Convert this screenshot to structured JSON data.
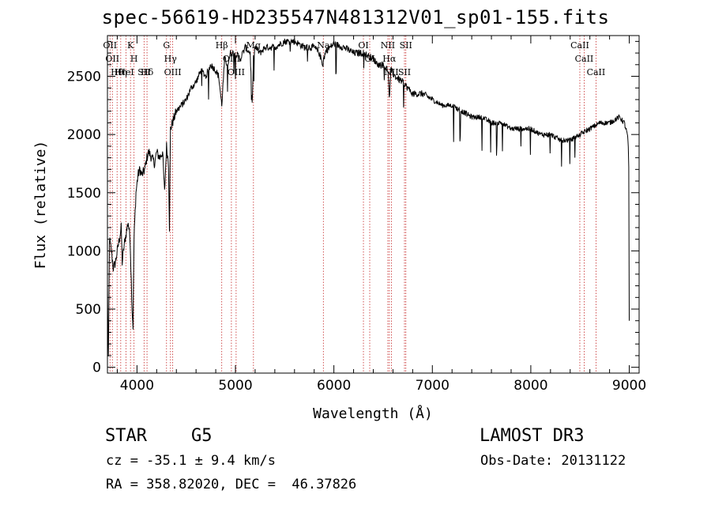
{
  "chart_data": {
    "type": "line",
    "title": "spec-56619-HD235547N481312V01_sp01-155.fits",
    "xlabel": "Wavelength (Å)",
    "ylabel": "Flux (relative)",
    "xlim": [
      3700,
      9100
    ],
    "ylim": [
      -50,
      2850
    ],
    "xticks": [
      4000,
      5000,
      6000,
      7000,
      8000,
      9000
    ],
    "yticks": [
      0,
      500,
      1000,
      1500,
      2000,
      2500
    ],
    "grid": false,
    "series": [
      {
        "color": "#000000",
        "x": [
          3700,
          3710,
          3720,
          3740,
          3760,
          3780,
          3800,
          3820,
          3840,
          3850,
          3870,
          3890,
          3910,
          3930,
          3950,
          3960,
          3970,
          3990,
          4010,
          4030,
          4050,
          4080,
          4100,
          4120,
          4150,
          4180,
          4200,
          4230,
          4260,
          4280,
          4300,
          4320,
          4330,
          4340,
          4360,
          4380,
          4400,
          4450,
          4500,
          4550,
          4600,
          4650,
          4700,
          4750,
          4800,
          4830,
          4861,
          4890,
          4920,
          4950,
          5000,
          5050,
          5100,
          5150,
          5170,
          5183,
          5200,
          5250,
          5300,
          5400,
          5500,
          5600,
          5700,
          5800,
          5850,
          5890,
          5896,
          5920,
          6000,
          6100,
          6200,
          6300,
          6400,
          6450,
          6500,
          6550,
          6563,
          6580,
          6620,
          6700,
          6800,
          6900,
          7000,
          7100,
          7200,
          7300,
          7400,
          7500,
          7600,
          7700,
          7800,
          7900,
          8000,
          8100,
          8200,
          8300,
          8400,
          8500,
          8600,
          8700,
          8800,
          8900,
          8950,
          8980,
          8990,
          8995,
          9000
        ],
        "values": [
          700,
          50,
          1100,
          1000,
          850,
          900,
          1000,
          1100,
          1200,
          900,
          1050,
          1150,
          1250,
          1100,
          500,
          350,
          1100,
          1500,
          1650,
          1700,
          1650,
          1700,
          1800,
          1850,
          1800,
          1750,
          1850,
          1800,
          1850,
          1500,
          1900,
          1750,
          1200,
          2050,
          2100,
          2150,
          2200,
          2250,
          2300,
          2400,
          2450,
          2550,
          2500,
          2600,
          2550,
          2500,
          2250,
          2650,
          2600,
          2700,
          2700,
          2650,
          2750,
          2700,
          2250,
          2650,
          2750,
          2700,
          2750,
          2750,
          2800,
          2800,
          2750,
          2750,
          2700,
          2600,
          2650,
          2720,
          2780,
          2750,
          2700,
          2700,
          2650,
          2600,
          2600,
          2550,
          2300,
          2550,
          2500,
          2450,
          2350,
          2350,
          2300,
          2250,
          2250,
          2200,
          2150,
          2150,
          2100,
          2100,
          2050,
          2050,
          2050,
          2000,
          2000,
          1950,
          1950,
          2000,
          2050,
          2100,
          2100,
          2150,
          2100,
          2000,
          1900,
          1700,
          400
        ]
      }
    ],
    "line_markers": [
      {
        "wl": 3726,
        "labels": [
          "OII"
        ]
      },
      {
        "wl": 3750,
        "labels": [
          "OII"
        ]
      },
      {
        "wl": 3798,
        "labels": [
          "Hθ"
        ]
      },
      {
        "wl": 3835,
        "labels": [
          "Hη"
        ]
      },
      {
        "wl": 3889,
        "labels": [
          "HeI"
        ]
      },
      {
        "wl": 3934,
        "labels": [
          "K"
        ]
      },
      {
        "wl": 3970,
        "labels": [
          "H"
        ]
      },
      {
        "wl": 4072,
        "labels": [
          "SII"
        ]
      },
      {
        "wl": 4102,
        "labels": [
          "Hδ"
        ]
      },
      {
        "wl": 4300,
        "labels": [
          "G"
        ]
      },
      {
        "wl": 4340,
        "labels": [
          "Hγ"
        ]
      },
      {
        "wl": 4363,
        "labels": [
          "OIII"
        ]
      },
      {
        "wl": 4861,
        "labels": [
          "Hβ"
        ]
      },
      {
        "wl": 4959,
        "labels": [
          "OIII"
        ]
      },
      {
        "wl": 5007,
        "labels": [
          "OIII"
        ]
      },
      {
        "wl": 5183,
        "labels": [
          "Mg"
        ]
      },
      {
        "wl": 5893,
        "labels": [
          "Na"
        ]
      },
      {
        "wl": 6300,
        "labels": [
          "OI"
        ]
      },
      {
        "wl": 6364,
        "labels": [
          "OI"
        ]
      },
      {
        "wl": 6548,
        "labels": [
          "NII"
        ]
      },
      {
        "wl": 6563,
        "labels": [
          "Hα"
        ]
      },
      {
        "wl": 6584,
        "labels": [
          "NII"
        ]
      },
      {
        "wl": 6717,
        "labels": [
          "SII"
        ]
      },
      {
        "wl": 6731,
        "labels": [
          "SII"
        ]
      },
      {
        "wl": 8498,
        "labels": [
          "CaII"
        ]
      },
      {
        "wl": 8542,
        "labels": [
          "CaII"
        ]
      },
      {
        "wl": 8662,
        "labels": [
          "CaII"
        ]
      }
    ]
  },
  "info": {
    "obj_class": "STAR",
    "obj_subclass": "G5",
    "survey": "LAMOST DR3",
    "cz": "cz = -35.1 ± 9.4 km/s",
    "obs_date": "Obs-Date: 20131122",
    "radec": "RA = 358.82020, DEC =  46.37826"
  }
}
